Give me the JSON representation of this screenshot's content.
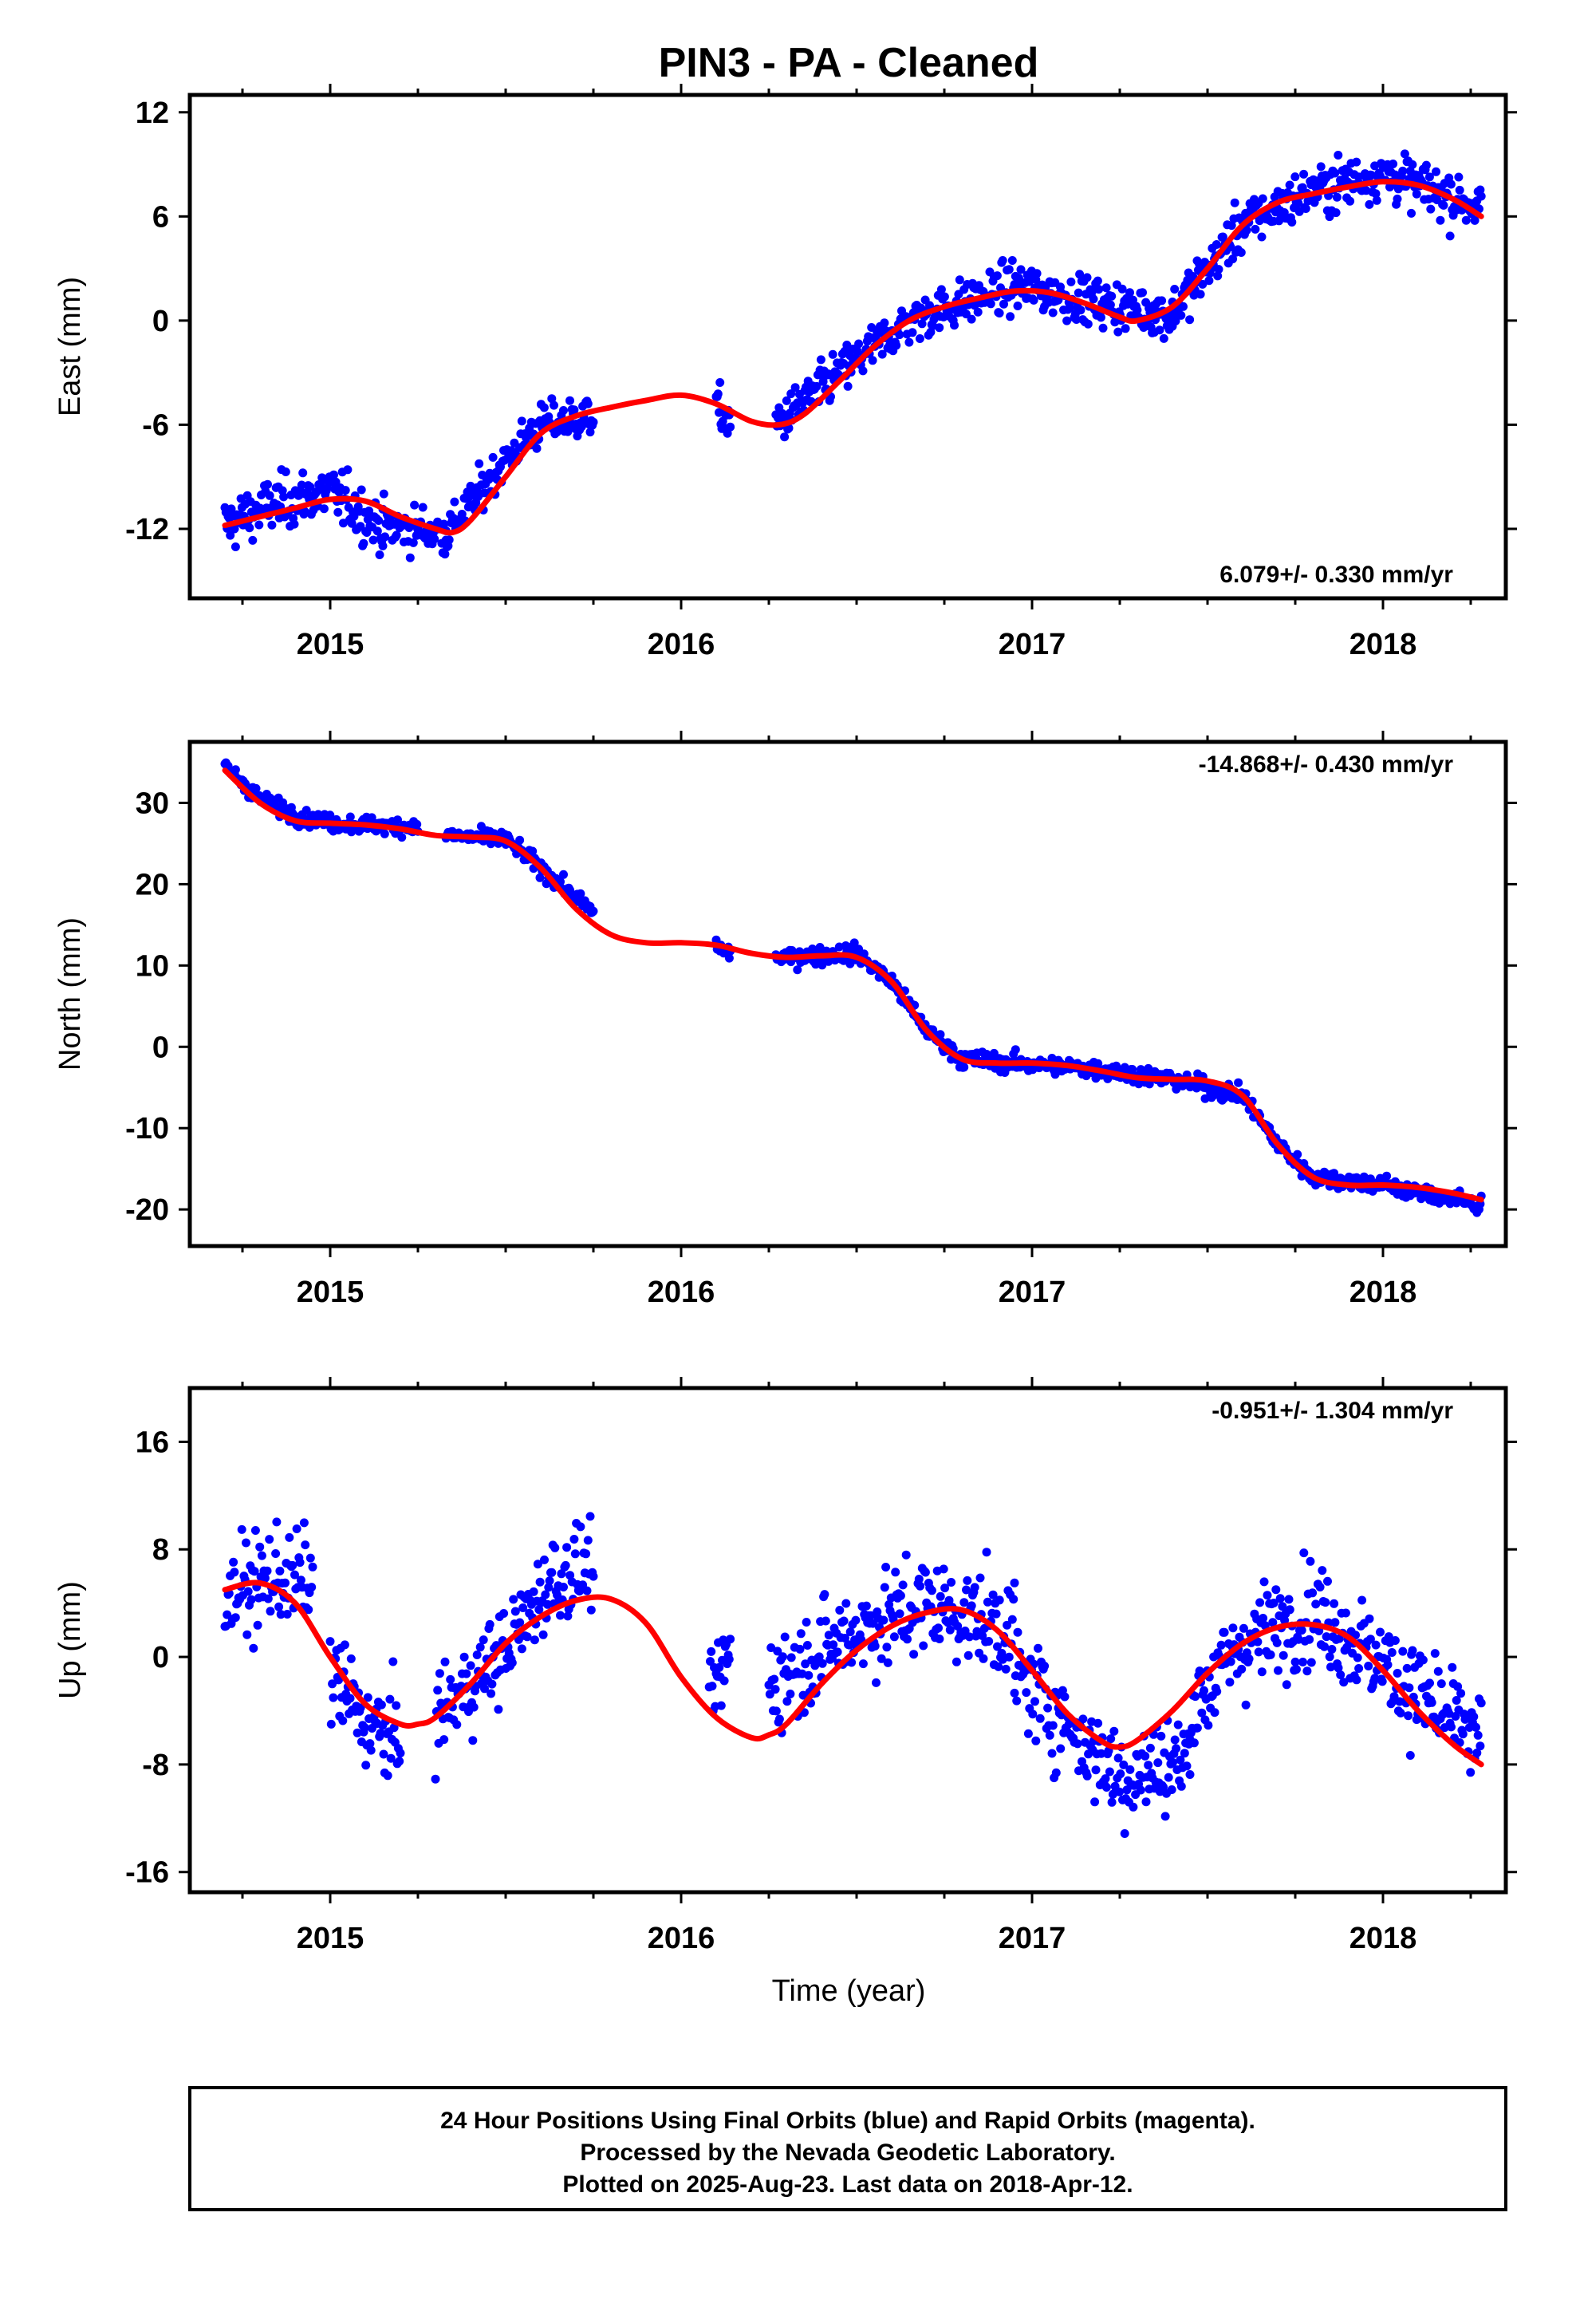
{
  "title": "PIN3  - PA - Cleaned",
  "xlabel": "Time (year)",
  "footer": [
    "24 Hour Positions Using Final Orbits (blue) and Rapid Orbits (magenta).",
    "Processed by the Nevada Geodetic Laboratory.",
    "Plotted on 2025-Aug-23. Last data on 2018-Apr-12."
  ],
  "colors": {
    "points": "#0000ff",
    "fit": "#ff0000",
    "frame": "#000000"
  },
  "chart_data": [
    {
      "type": "scatter",
      "ylabel": "East (mm)",
      "rate_label": "6.079+/- 0.330 mm/yr",
      "rate_position": "bottom-right",
      "xlim": [
        2014.6,
        2018.35
      ],
      "ylim": [
        -16,
        13
      ],
      "xticks": [
        2015,
        2016,
        2017,
        2018
      ],
      "xtick_labels": [
        "2015",
        "2016",
        "2017",
        "2018"
      ],
      "yticks": [
        12,
        6,
        0,
        -6,
        -12
      ],
      "ytick_labels": [
        "12",
        "6",
        "0",
        "-6",
        "-12"
      ],
      "grid": false,
      "series": [
        {
          "kind": "fit",
          "x": [
            2014.7,
            2014.8,
            2014.9,
            2015.0,
            2015.1,
            2015.2,
            2015.3,
            2015.35,
            2015.4,
            2015.5,
            2015.6,
            2015.7,
            2015.8,
            2015.9,
            2016.0,
            2016.1,
            2016.2,
            2016.28,
            2016.35,
            2016.45,
            2016.55,
            2016.65,
            2016.75,
            2016.85,
            2016.95,
            2017.05,
            2017.15,
            2017.25,
            2017.3,
            2017.4,
            2017.5,
            2017.6,
            2017.7,
            2017.8,
            2017.9,
            2018.0,
            2018.1,
            2018.2,
            2018.28
          ],
          "y": [
            -11.8,
            -11.3,
            -10.8,
            -10.3,
            -10.4,
            -11.3,
            -12.0,
            -12.2,
            -11.5,
            -9.0,
            -6.5,
            -5.5,
            -5.0,
            -4.6,
            -4.3,
            -4.8,
            -5.8,
            -6.0,
            -5.4,
            -3.5,
            -1.5,
            0.0,
            0.8,
            1.3,
            1.7,
            1.6,
            1.0,
            0.2,
            0.0,
            0.8,
            3.0,
            5.5,
            6.8,
            7.3,
            7.7,
            8.0,
            7.8,
            7.0,
            6.0
          ]
        },
        {
          "kind": "points",
          "segments": [
            {
              "x": [
                2014.7,
                2015.15
              ],
              "model": [
                [
                  2014.7,
                  -11.8
                ],
                [
                  2014.85,
                  -10.5
                ],
                [
                  2015.0,
                  -9.8
                ],
                [
                  2015.15,
                  -12.0
                ]
              ],
              "noise": 1.4
            },
            {
              "x": [
                2015.15,
                2015.33
              ],
              "model": [
                [
                  2015.15,
                  -11.8
                ],
                [
                  2015.33,
                  -12.2
                ]
              ],
              "noise": 1.2
            },
            {
              "x": [
                2015.33,
                2015.75
              ],
              "model": [
                [
                  2015.33,
                  -12.3
                ],
                [
                  2015.5,
                  -8.0
                ],
                [
                  2015.6,
                  -6.0
                ],
                [
                  2015.75,
                  -5.5
                ]
              ],
              "noise": 1.1
            },
            {
              "x": [
                2016.1,
                2016.14
              ],
              "model": [
                [
                  2016.1,
                  -5.0
                ],
                [
                  2016.14,
                  -6.0
                ]
              ],
              "noise": 1.2
            },
            {
              "x": [
                2016.27,
                2016.95
              ],
              "model": [
                [
                  2016.27,
                  -6.0
                ],
                [
                  2016.45,
                  -3.0
                ],
                [
                  2016.65,
                  0.0
                ],
                [
                  2016.95,
                  2.0
                ]
              ],
              "noise": 1.2
            },
            {
              "x": [
                2016.95,
                2017.4
              ],
              "model": [
                [
                  2016.95,
                  2.0
                ],
                [
                  2017.2,
                  1.0
                ],
                [
                  2017.4,
                  0.3
                ]
              ],
              "noise": 1.2
            },
            {
              "x": [
                2017.4,
                2018.28
              ],
              "model": [
                [
                  2017.4,
                  0.5
                ],
                [
                  2017.6,
                  5.5
                ],
                [
                  2017.8,
                  7.5
                ],
                [
                  2018.0,
                  8.5
                ],
                [
                  2018.28,
                  6.5
                ]
              ],
              "noise": 1.3
            }
          ]
        }
      ]
    },
    {
      "type": "scatter",
      "ylabel": "North (mm)",
      "rate_label": "-14.868+/- 0.430 mm/yr",
      "rate_position": "top-right",
      "xlim": [
        2014.6,
        2018.35
      ],
      "ylim": [
        -24.5,
        37.5
      ],
      "xticks": [
        2015,
        2016,
        2017,
        2018
      ],
      "xtick_labels": [
        "2015",
        "2016",
        "2017",
        "2018"
      ],
      "yticks": [
        30,
        20,
        10,
        0,
        -10,
        -20
      ],
      "ytick_labels": [
        "30",
        "20",
        "10",
        "0",
        "-10",
        "-20"
      ],
      "grid": false,
      "series": [
        {
          "kind": "fit",
          "x": [
            2014.7,
            2014.8,
            2014.9,
            2015.0,
            2015.1,
            2015.2,
            2015.3,
            2015.4,
            2015.5,
            2015.6,
            2015.7,
            2015.8,
            2015.9,
            2016.0,
            2016.1,
            2016.2,
            2016.3,
            2016.4,
            2016.5,
            2016.6,
            2016.7,
            2016.8,
            2016.9,
            2017.0,
            2017.1,
            2017.2,
            2017.3,
            2017.4,
            2017.5,
            2017.6,
            2017.7,
            2017.8,
            2017.9,
            2018.0,
            2018.1,
            2018.2,
            2018.28
          ],
          "y": [
            34.0,
            30.0,
            27.8,
            27.5,
            27.3,
            26.8,
            26.0,
            25.8,
            25.3,
            22.0,
            17.0,
            13.8,
            12.8,
            12.8,
            12.5,
            11.5,
            11.0,
            11.2,
            11.0,
            8.0,
            2.0,
            -1.5,
            -2.0,
            -2.0,
            -2.3,
            -3.0,
            -3.8,
            -4.0,
            -4.2,
            -6.0,
            -12.0,
            -16.0,
            -17.0,
            -17.0,
            -17.3,
            -18.0,
            -18.8
          ]
        },
        {
          "kind": "points",
          "segments": [
            {
              "x": [
                2014.7,
                2015.25
              ],
              "model": [
                [
                  2014.7,
                  34.5
                ],
                [
                  2014.8,
                  30.5
                ],
                [
                  2014.9,
                  28.5
                ],
                [
                  2015.0,
                  27.5
                ],
                [
                  2015.25,
                  27.0
                ]
              ],
              "noise": 0.9
            },
            {
              "x": [
                2015.33,
                2015.75
              ],
              "model": [
                [
                  2015.33,
                  26.0
                ],
                [
                  2015.5,
                  25.5
                ],
                [
                  2015.6,
                  22.0
                ],
                [
                  2015.75,
                  16.5
                ]
              ],
              "noise": 0.9
            },
            {
              "x": [
                2016.1,
                2016.14
              ],
              "model": [
                [
                  2016.1,
                  12.5
                ],
                [
                  2016.14,
                  11.5
                ]
              ],
              "noise": 0.8
            },
            {
              "x": [
                2016.27,
                2016.95
              ],
              "model": [
                [
                  2016.27,
                  11.0
                ],
                [
                  2016.5,
                  11.5
                ],
                [
                  2016.6,
                  8.0
                ],
                [
                  2016.7,
                  2.0
                ],
                [
                  2016.8,
                  -1.5
                ],
                [
                  2016.95,
                  -2.0
                ]
              ],
              "noise": 1.0
            },
            {
              "x": [
                2016.95,
                2017.6
              ],
              "model": [
                [
                  2016.95,
                  -2.0
                ],
                [
                  2017.2,
                  -2.8
                ],
                [
                  2017.4,
                  -4.0
                ],
                [
                  2017.6,
                  -6.0
                ]
              ],
              "noise": 1.0
            },
            {
              "x": [
                2017.6,
                2018.28
              ],
              "model": [
                [
                  2017.6,
                  -6.0
                ],
                [
                  2017.7,
                  -12.0
                ],
                [
                  2017.8,
                  -16.0
                ],
                [
                  2018.0,
                  -17.0
                ],
                [
                  2018.28,
                  -19.5
                ]
              ],
              "noise": 1.0
            }
          ]
        }
      ]
    },
    {
      "type": "scatter",
      "ylabel": "Up (mm)",
      "rate_label": "-0.951+/- 1.304 mm/yr",
      "rate_position": "top-right",
      "xlim": [
        2014.6,
        2018.35
      ],
      "ylim": [
        -17.5,
        20
      ],
      "xticks": [
        2015,
        2016,
        2017,
        2018
      ],
      "xtick_labels": [
        "2015",
        "2016",
        "2017",
        "2018"
      ],
      "yticks": [
        16,
        8,
        0,
        -8,
        -16
      ],
      "ytick_labels": [
        "16",
        "8",
        "0",
        "-8",
        "-16"
      ],
      "grid": false,
      "series": [
        {
          "kind": "fit",
          "x": [
            2014.7,
            2014.8,
            2014.9,
            2015.0,
            2015.1,
            2015.2,
            2015.25,
            2015.3,
            2015.4,
            2015.5,
            2015.6,
            2015.7,
            2015.8,
            2015.9,
            2016.0,
            2016.1,
            2016.2,
            2016.25,
            2016.3,
            2016.4,
            2016.5,
            2016.6,
            2016.7,
            2016.8,
            2016.9,
            2017.0,
            2017.1,
            2017.2,
            2017.25,
            2017.3,
            2017.4,
            2017.5,
            2017.6,
            2017.7,
            2017.8,
            2017.9,
            2018.0,
            2018.1,
            2018.2,
            2018.28
          ],
          "y": [
            5.0,
            5.5,
            4.0,
            0.0,
            -3.5,
            -5.0,
            -5.0,
            -4.5,
            -2.0,
            1.0,
            3.0,
            4.2,
            4.3,
            2.5,
            -1.5,
            -4.5,
            -6.0,
            -5.8,
            -5.0,
            -2.0,
            0.5,
            2.3,
            3.3,
            3.5,
            2.0,
            -1.0,
            -4.2,
            -6.3,
            -6.7,
            -6.2,
            -4.0,
            -1.2,
            1.0,
            2.2,
            2.4,
            1.5,
            -1.0,
            -4.0,
            -6.5,
            -8.0
          ]
        },
        {
          "kind": "points",
          "segments": [
            {
              "x": [
                2014.7,
                2014.95
              ],
              "model": [
                [
                  2014.7,
                  4.5
                ],
                [
                  2014.85,
                  6.0
                ],
                [
                  2014.95,
                  5.5
                ]
              ],
              "noise": 3.2
            },
            {
              "x": [
                2015.0,
                2015.2
              ],
              "model": [
                [
                  2015.0,
                  -1.0
                ],
                [
                  2015.1,
                  -5.0
                ],
                [
                  2015.2,
                  -6.5
                ]
              ],
              "noise": 3.3
            },
            {
              "x": [
                2015.3,
                2015.75
              ],
              "model": [
                [
                  2015.3,
                  -4.5
                ],
                [
                  2015.5,
                  0.5
                ],
                [
                  2015.62,
                  5.5
                ],
                [
                  2015.75,
                  7.0
                ]
              ],
              "noise": 3.0
            },
            {
              "x": [
                2016.08,
                2016.14
              ],
              "model": [
                [
                  2016.08,
                  -3.5
                ],
                [
                  2016.14,
                  0.5
                ]
              ],
              "noise": 2.5
            },
            {
              "x": [
                2016.25,
                2016.95
              ],
              "model": [
                [
                  2016.25,
                  -2.0
                ],
                [
                  2016.5,
                  2.0
                ],
                [
                  2016.7,
                  4.0
                ],
                [
                  2016.95,
                  2.0
                ]
              ],
              "noise": 3.3
            },
            {
              "x": [
                2016.95,
                2017.45
              ],
              "model": [
                [
                  2016.95,
                  -1.0
                ],
                [
                  2017.1,
                  -5.0
                ],
                [
                  2017.25,
                  -9.0
                ],
                [
                  2017.45,
                  -7.5
                ]
              ],
              "noise": 3.3
            },
            {
              "x": [
                2017.45,
                2018.28
              ],
              "model": [
                [
                  2017.45,
                  -4.0
                ],
                [
                  2017.6,
                  1.0
                ],
                [
                  2017.8,
                  3.5
                ],
                [
                  2018.0,
                  -0.5
                ],
                [
                  2018.28,
                  -6.5
                ]
              ],
              "noise": 3.3
            }
          ]
        }
      ]
    }
  ]
}
